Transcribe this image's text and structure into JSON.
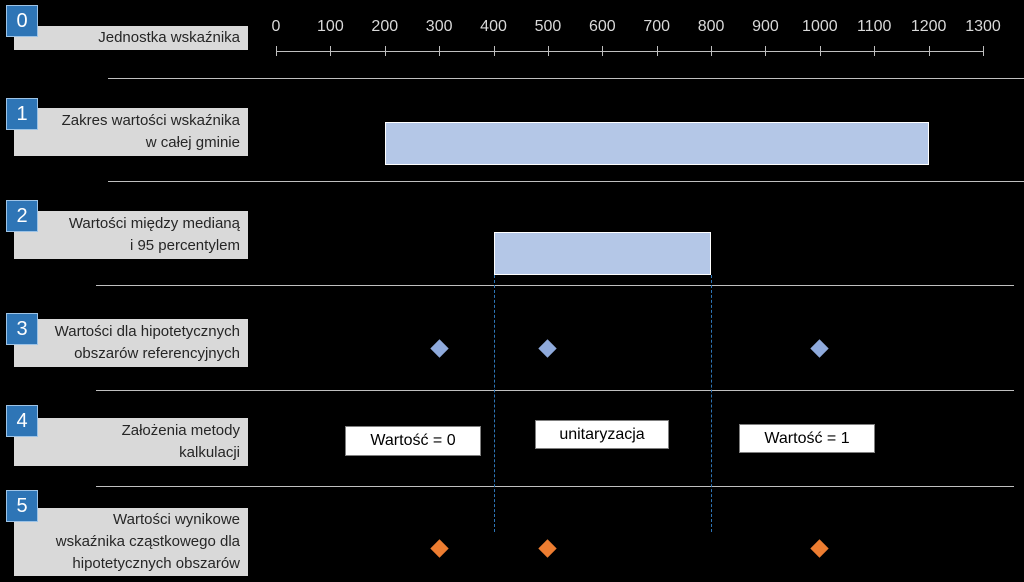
{
  "axis": {
    "ticks": [
      "0",
      "100",
      "200",
      "300",
      "400",
      "500",
      "600",
      "700",
      "800",
      "900",
      "1000",
      "1100",
      "1200",
      "1300"
    ],
    "min": 0,
    "max": 1300
  },
  "rows": [
    {
      "num": "0",
      "label": "Jednostka wskaźnika"
    },
    {
      "num": "1",
      "label": "Zakres wartości wskaźnika\nw całej gminie"
    },
    {
      "num": "2",
      "label": "Wartości między medianą\ni 95 percentylem"
    },
    {
      "num": "3",
      "label": "Wartości dla hipotetycznych\nobszarów referencyjnych"
    },
    {
      "num": "4",
      "label": "Założenia metody\nkalkulacji"
    },
    {
      "num": "5",
      "label": "Wartości wynikowe\nwskaźnika cząstkowego dla\nhipotetycznych obszarów"
    }
  ],
  "ranges": {
    "full": [
      200,
      1200
    ],
    "median_p95": [
      400,
      800
    ]
  },
  "reference_points": [
    300,
    500,
    1000
  ],
  "result_points": [
    300,
    500,
    1000
  ],
  "method_boxes": {
    "zero": "Wartość = 0",
    "unit": "unitaryzacja",
    "one": "Wartość = 1"
  },
  "colors": {
    "bar": "#b4c7e7",
    "ref_diamond": "#8faadc",
    "result_diamond": "#ed7d31",
    "badge": "#2e75b6"
  }
}
